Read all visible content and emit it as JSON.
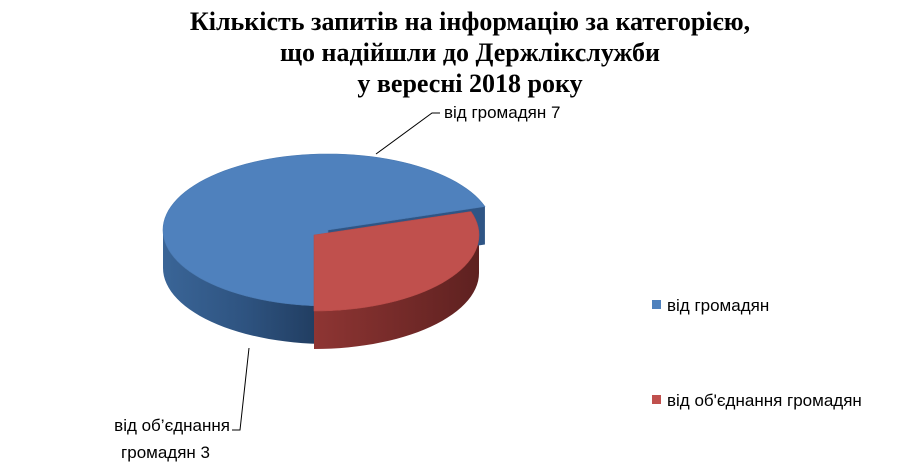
{
  "chart_data": {
    "type": "pie",
    "title_lines": [
      "Кількість запитів на інформацію за категорією,",
      "що надійшли до Держлікслужби",
      "у вересні 2018 року"
    ],
    "categories": [
      "від громадян",
      "від об’єднання громадян"
    ],
    "values": [
      7,
      3
    ],
    "data_labels": [
      {
        "line1": "від громадян 7",
        "line2": ""
      },
      {
        "line1": "від об’єднання",
        "line2": "громадян 3"
      }
    ],
    "legend": {
      "position": "right",
      "entries": [
        "від громадян",
        "від об'єднання громадян"
      ]
    },
    "colors": {
      "series": [
        "#4f81bd",
        "#c0504d"
      ],
      "series_side": [
        "#2c4d75",
        "#772c2a"
      ],
      "exploded_slice": "від об’єднання громадян"
    },
    "style": "3d-exploded"
  }
}
